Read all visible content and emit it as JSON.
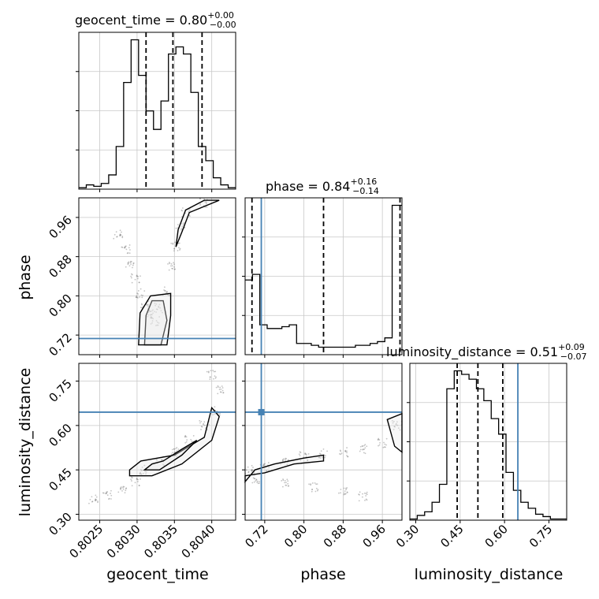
{
  "chart_data": {
    "type": "corner",
    "parameters": [
      "geocent_time",
      "phase",
      "luminosity_distance"
    ],
    "titles": [
      {
        "param": "geocent_time",
        "text": "geocent_time = ",
        "median": "0.80",
        "plus": "+0.00",
        "minus": "−0.00"
      },
      {
        "param": "phase",
        "text": "phase = ",
        "median": "0.84",
        "plus": "+0.16",
        "minus": "−0.14"
      },
      {
        "param": "luminosity_distance",
        "text": "luminosity_distance = ",
        "median": "0.51",
        "plus": "+0.09",
        "minus": "−0.07"
      }
    ],
    "axis_labels": {
      "x": [
        "geocent_time",
        "phase",
        "luminosity_distance"
      ],
      "y": [
        "phase",
        "luminosity_distance"
      ]
    },
    "ranges": {
      "geocent_time": [
        0.80222,
        0.80432
      ],
      "phase": [
        0.68,
        1.0
      ],
      "luminosity_distance": [
        0.28,
        0.81
      ]
    },
    "ticks": {
      "geocent_time": [
        "0.8025",
        "0.8030",
        "0.8035",
        "0.8040"
      ],
      "phase": [
        "0.72",
        "0.80",
        "0.88",
        "0.96"
      ],
      "luminosity_distance": [
        "0.30",
        "0.45",
        "0.60",
        "0.75"
      ]
    },
    "tick_values": {
      "geocent_time": [
        0.8025,
        0.803,
        0.8035,
        0.804
      ],
      "phase": [
        0.72,
        0.8,
        0.88,
        0.96
      ],
      "luminosity_distance": [
        0.3,
        0.45,
        0.6,
        0.75
      ]
    },
    "truths": {
      "geocent_time": null,
      "phase": 0.713,
      "luminosity_distance": 0.645
    },
    "truth_color": "#4682b4",
    "quantiles": {
      "geocent_time": [
        0.80312,
        0.80348,
        0.80387
      ],
      "phase": [
        0.694,
        0.84,
        0.996
      ],
      "luminosity_distance": [
        0.44,
        0.51,
        0.594
      ]
    },
    "histograms": {
      "geocent_time": {
        "edges": [
          0.80222,
          0.80232,
          0.80242,
          0.80252,
          0.80262,
          0.80272,
          0.80282,
          0.80292,
          0.80302,
          0.80312,
          0.80322,
          0.80332,
          0.80342,
          0.80352,
          0.80362,
          0.80372,
          0.80382,
          0.80392,
          0.80402,
          0.80412,
          0.80422,
          0.80432
        ],
        "counts": [
          1,
          3,
          2,
          4,
          10,
          30,
          75,
          105,
          80,
          55,
          42,
          62,
          95,
          100,
          95,
          68,
          30,
          20,
          8,
          3,
          1
        ]
      },
      "phase": {
        "edges": [
          0.68,
          0.695,
          0.71,
          0.725,
          0.74,
          0.755,
          0.77,
          0.785,
          0.8,
          0.815,
          0.83,
          0.845,
          0.86,
          0.875,
          0.89,
          0.905,
          0.92,
          0.935,
          0.95,
          0.965,
          0.98,
          1.0
        ],
        "counts": [
          40,
          43,
          16,
          14,
          14,
          15,
          16,
          6,
          6,
          5,
          4,
          4,
          4,
          4,
          4,
          5,
          5,
          6,
          7,
          9,
          80
        ]
      },
      "luminosity_distance": {
        "edges": [
          0.28,
          0.305,
          0.33,
          0.355,
          0.38,
          0.405,
          0.43,
          0.455,
          0.48,
          0.505,
          0.53,
          0.555,
          0.58,
          0.605,
          0.63,
          0.655,
          0.68,
          0.705,
          0.73,
          0.755,
          0.78,
          0.81
        ],
        "counts": [
          1,
          4,
          7,
          15,
          30,
          110,
          125,
          122,
          118,
          110,
          100,
          85,
          72,
          40,
          25,
          15,
          10,
          5,
          3,
          1,
          1
        ]
      }
    },
    "scatter": {
      "phase_vs_geocent_time": [
        {
          "x": 0.80275,
          "y": 0.925
        },
        {
          "x": 0.80285,
          "y": 0.895
        },
        {
          "x": 0.8029,
          "y": 0.865
        },
        {
          "x": 0.80298,
          "y": 0.835
        },
        {
          "x": 0.80305,
          "y": 0.805
        },
        {
          "x": 0.8031,
          "y": 0.78
        },
        {
          "x": 0.80318,
          "y": 0.762
        },
        {
          "x": 0.80324,
          "y": 0.748
        },
        {
          "x": 0.8033,
          "y": 0.775
        },
        {
          "x": 0.80338,
          "y": 0.81
        },
        {
          "x": 0.80345,
          "y": 0.86
        },
        {
          "x": 0.80352,
          "y": 0.9
        },
        {
          "x": 0.80358,
          "y": 0.94
        },
        {
          "x": 0.80365,
          "y": 0.97
        },
        {
          "x": 0.8039,
          "y": 0.99
        }
      ],
      "luminosity_distance_vs_geocent_time": [
        {
          "x": 0.80242,
          "y": 0.35
        },
        {
          "x": 0.8026,
          "y": 0.365
        },
        {
          "x": 0.8028,
          "y": 0.385
        },
        {
          "x": 0.80298,
          "y": 0.41
        },
        {
          "x": 0.8031,
          "y": 0.45
        },
        {
          "x": 0.8033,
          "y": 0.48
        },
        {
          "x": 0.8035,
          "y": 0.51
        },
        {
          "x": 0.8037,
          "y": 0.55
        },
        {
          "x": 0.8039,
          "y": 0.6
        },
        {
          "x": 0.80405,
          "y": 0.65
        },
        {
          "x": 0.8041,
          "y": 0.72
        },
        {
          "x": 0.804,
          "y": 0.77
        }
      ],
      "luminosity_distance_vs_phase": [
        {
          "x": 0.69,
          "y": 0.45
        },
        {
          "x": 0.72,
          "y": 0.46
        },
        {
          "x": 0.76,
          "y": 0.48
        },
        {
          "x": 0.8,
          "y": 0.495
        },
        {
          "x": 0.84,
          "y": 0.505
        },
        {
          "x": 0.88,
          "y": 0.51
        },
        {
          "x": 0.92,
          "y": 0.52
        },
        {
          "x": 0.96,
          "y": 0.54
        },
        {
          "x": 0.99,
          "y": 0.6
        },
        {
          "x": 0.7,
          "y": 0.42
        },
        {
          "x": 0.76,
          "y": 0.405
        },
        {
          "x": 0.82,
          "y": 0.39
        },
        {
          "x": 0.88,
          "y": 0.375
        },
        {
          "x": 0.92,
          "y": 0.36
        }
      ]
    },
    "contours": {
      "phase_vs_geocent_time": [
        [
          [
            0.8039,
            0.995
          ],
          [
            0.80365,
            0.975
          ],
          [
            0.80355,
            0.935
          ],
          [
            0.80352,
            0.9
          ],
          [
            0.8036,
            0.93
          ],
          [
            0.8037,
            0.97
          ],
          [
            0.8041,
            0.995
          ]
        ],
        [
          [
            0.8031,
            0.7
          ],
          [
            0.80312,
            0.76
          ],
          [
            0.8032,
            0.79
          ],
          [
            0.80335,
            0.79
          ],
          [
            0.8034,
            0.75
          ],
          [
            0.80332,
            0.7
          ]
        ],
        [
          [
            0.80302,
            0.7
          ],
          [
            0.80304,
            0.765
          ],
          [
            0.80318,
            0.8
          ],
          [
            0.80345,
            0.805
          ],
          [
            0.80345,
            0.76
          ],
          [
            0.8034,
            0.7
          ]
        ]
      ],
      "luminosity_distance_vs_geocent_time": [
        [
          [
            0.8029,
            0.45
          ],
          [
            0.80305,
            0.48
          ],
          [
            0.8035,
            0.5
          ],
          [
            0.8039,
            0.56
          ],
          [
            0.804,
            0.66
          ],
          [
            0.8041,
            0.63
          ],
          [
            0.804,
            0.55
          ],
          [
            0.8036,
            0.47
          ],
          [
            0.8032,
            0.43
          ],
          [
            0.8029,
            0.43
          ]
        ],
        [
          [
            0.8031,
            0.45
          ],
          [
            0.8032,
            0.47
          ],
          [
            0.80335,
            0.48
          ],
          [
            0.8036,
            0.52
          ],
          [
            0.8038,
            0.55
          ],
          [
            0.8036,
            0.5
          ],
          [
            0.8033,
            0.45
          ]
        ]
      ],
      "luminosity_distance_vs_phase": [
        [
          [
            0.68,
            0.41
          ],
          [
            0.7,
            0.45
          ],
          [
            0.74,
            0.47
          ],
          [
            0.8,
            0.49
          ],
          [
            0.84,
            0.5
          ],
          [
            0.84,
            0.48
          ],
          [
            0.78,
            0.47
          ],
          [
            0.72,
            0.44
          ],
          [
            0.68,
            0.43
          ]
        ],
        [
          [
            0.97,
            0.62
          ],
          [
            0.985,
            0.53
          ],
          [
            1.0,
            0.51
          ],
          [
            1.0,
            0.64
          ]
        ]
      ]
    }
  }
}
